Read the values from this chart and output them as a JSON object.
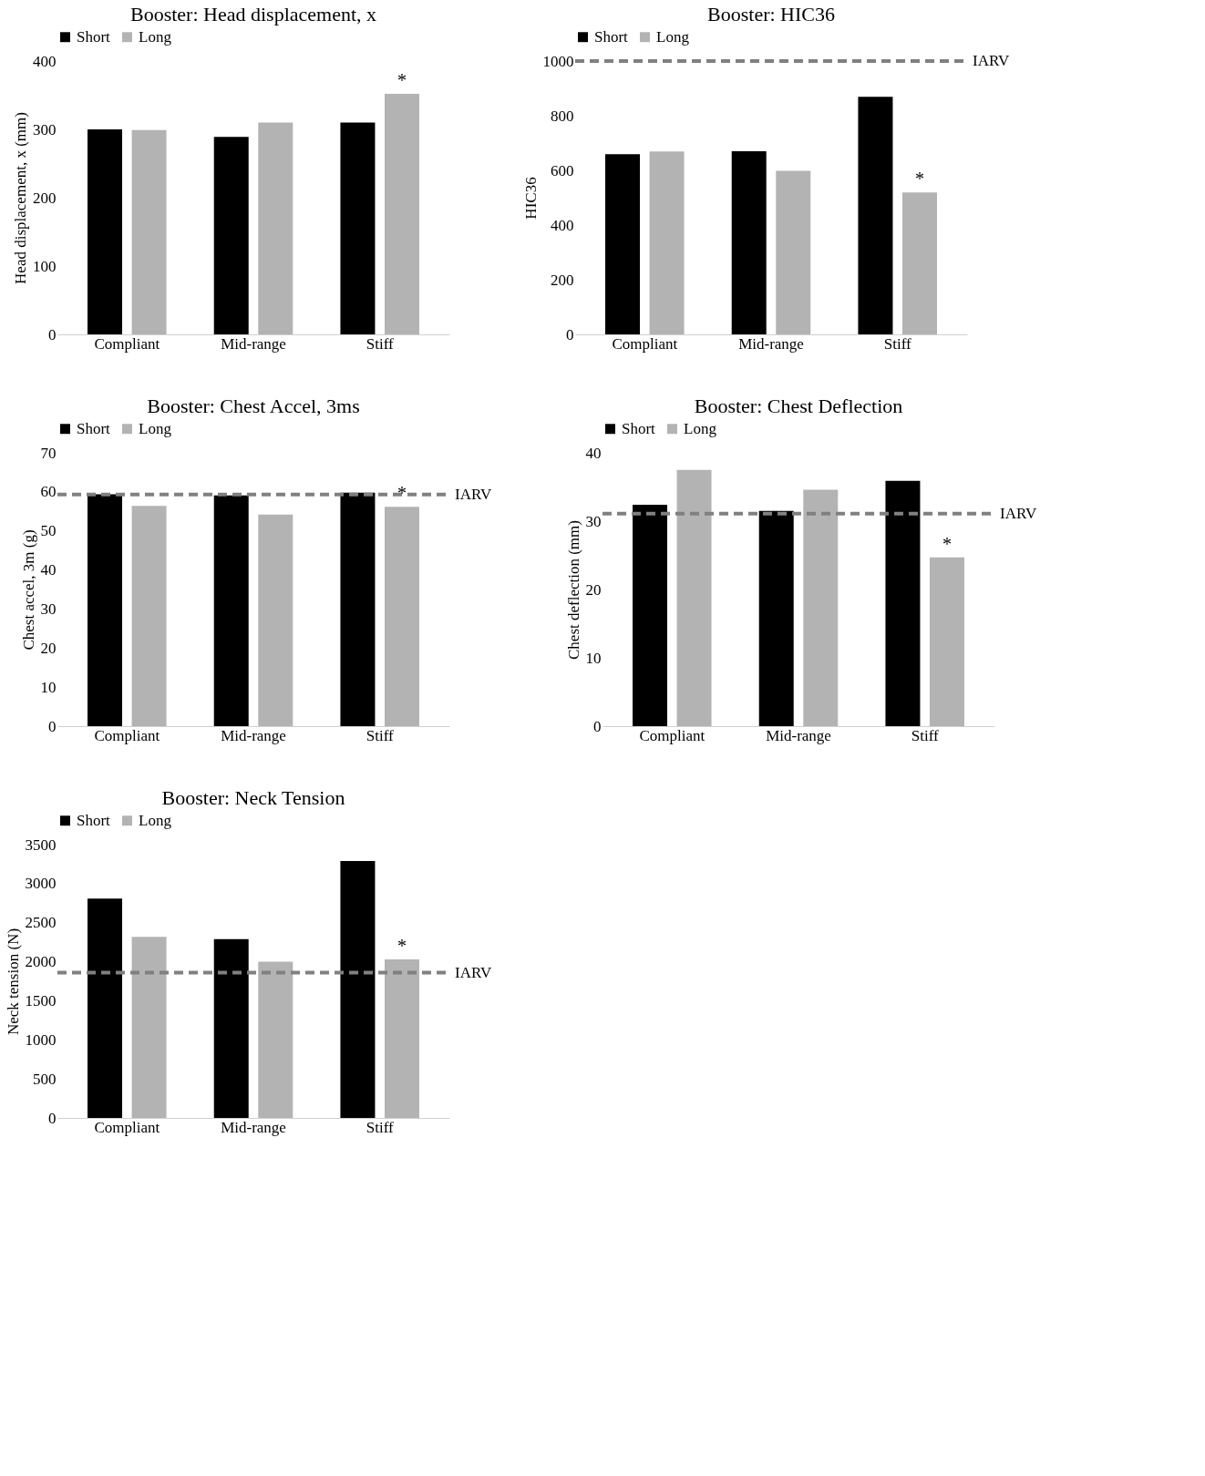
{
  "chart_data": [
    {
      "type": "bar",
      "title": "Booster: Head displacement, x",
      "ylabel": "Head displacement, x (mm)",
      "categories": [
        "Compliant",
        "Mid-range",
        "Stiff"
      ],
      "series": [
        {
          "name": "Short",
          "color": "#000000",
          "values": [
            300,
            289,
            310
          ]
        },
        {
          "name": "Long",
          "color": "#b3b3b3",
          "values": [
            299,
            310,
            352
          ]
        }
      ],
      "ylim": [
        0,
        400
      ],
      "yticks": [
        0,
        100,
        200,
        300,
        400
      ],
      "legend": "top",
      "annotations": [
        "*"
      ]
    },
    {
      "type": "bar",
      "title": "Booster: HIC36",
      "ylabel": "HIC36",
      "categories": [
        "Compliant",
        "Mid-range",
        "Stiff"
      ],
      "series": [
        {
          "name": "Short",
          "color": "#000000",
          "values": [
            659,
            670,
            869
          ]
        },
        {
          "name": "Long",
          "color": "#b3b3b3",
          "values": [
            669,
            598,
            519
          ]
        }
      ],
      "ylim": [
        0,
        1000
      ],
      "yticks": [
        0,
        200,
        400,
        600,
        800,
        1000
      ],
      "legend": "top",
      "ref_lines": [
        {
          "axis": "y",
          "value": 1000,
          "label": "IARV",
          "color": "#808080",
          "line_style": "dashed"
        }
      ],
      "annotations": [
        "*"
      ]
    },
    {
      "type": "bar",
      "title": "Booster: Chest Accel, 3ms",
      "ylabel": "Chest accel, 3m (g)",
      "categories": [
        "Compliant",
        "Mid-range",
        "Stiff"
      ],
      "series": [
        {
          "name": "Short",
          "color": "#000000",
          "values": [
            59.4,
            59.1,
            59.8
          ]
        },
        {
          "name": "Long",
          "color": "#b3b3b3",
          "values": [
            56.4,
            54.2,
            56.2
          ]
        }
      ],
      "ylim": [
        0,
        70
      ],
      "yticks": [
        0,
        10,
        20,
        30,
        40,
        50,
        60,
        70
      ],
      "legend": "top",
      "ref_lines": [
        {
          "axis": "y",
          "value": 59.3,
          "label": "IARV",
          "color": "#808080",
          "line_style": "dashed"
        }
      ],
      "annotations": [
        "*"
      ]
    },
    {
      "type": "bar",
      "title": "Booster: Chest Deflection",
      "ylabel": "Chest deflection (mm)",
      "categories": [
        "Compliant",
        "Mid-range",
        "Stiff"
      ],
      "series": [
        {
          "name": "Short",
          "color": "#000000",
          "values": [
            32.4,
            31.5,
            35.9
          ]
        },
        {
          "name": "Long",
          "color": "#b3b3b3",
          "values": [
            37.5,
            34.6,
            24.7
          ]
        }
      ],
      "ylim": [
        0,
        40
      ],
      "yticks": [
        0,
        10,
        20,
        30,
        40
      ],
      "legend": "top",
      "ref_lines": [
        {
          "axis": "y",
          "value": 31.1,
          "label": "IARV",
          "color": "#808080",
          "line_style": "dashed"
        }
      ],
      "annotations": [
        "*"
      ]
    },
    {
      "type": "bar",
      "title": "Booster: Neck Tension",
      "ylabel": "Neck tension (N)",
      "categories": [
        "Compliant",
        "Mid-range",
        "Stiff"
      ],
      "series": [
        {
          "name": "Short",
          "color": "#000000",
          "values": [
            2810,
            2290,
            3290
          ]
        },
        {
          "name": "Long",
          "color": "#b3b3b3",
          "values": [
            2320,
            2000,
            2030
          ]
        }
      ],
      "ylim": [
        0,
        3500
      ],
      "yticks": [
        0,
        500,
        1000,
        1500,
        2000,
        2500,
        3000,
        3500
      ],
      "legend": "top",
      "ref_lines": [
        {
          "axis": "y",
          "value": 1860,
          "label": "IARV",
          "color": "#808080",
          "line_style": "dashed"
        }
      ],
      "annotations": [
        "*"
      ]
    }
  ]
}
